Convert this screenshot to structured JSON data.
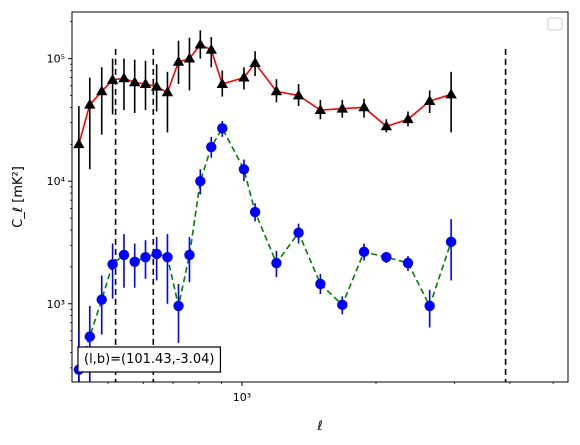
{
  "chart_data": {
    "type": "scatter",
    "title": "",
    "xlabel": "ℓ",
    "ylabel": "C_ℓ  [mK²]",
    "xscale": "log",
    "yscale": "log",
    "xlim": [
      415,
      5400
    ],
    "ylim": [
      230,
      240000
    ],
    "x_ticks": [
      {
        "value": 1000,
        "label": "10³"
      }
    ],
    "y_ticks": [
      {
        "value": 1000,
        "label": "10³"
      },
      {
        "value": 10000,
        "label": "10⁴"
      },
      {
        "value": 100000,
        "label": "10⁵"
      }
    ],
    "grid": false,
    "legend": {
      "placement": "top-right",
      "entries": []
    },
    "vlines": [
      520,
      632,
      3910
    ],
    "annotation": {
      "text": "(l,b)=(101.43,-3.04)",
      "placement": "bottom-left"
    },
    "series": [
      {
        "style": {
          "color": "#ff0000",
          "linestyle": "solid",
          "marker": "triangle",
          "marker_color": "#000000",
          "errorbar_color": "#000000"
        },
        "points": [
          {
            "x": 430,
            "y": 20000,
            "lo": 230,
            "hi": 41000
          },
          {
            "x": 455,
            "y": 42000,
            "lo": 12500,
            "hi": 70000
          },
          {
            "x": 484,
            "y": 54000,
            "lo": 24000,
            "hi": 85000
          },
          {
            "x": 512,
            "y": 67000,
            "lo": 35000,
            "hi": 100000
          },
          {
            "x": 543,
            "y": 69000,
            "lo": 38000,
            "hi": 100000
          },
          {
            "x": 574,
            "y": 64000,
            "lo": 36000,
            "hi": 98000
          },
          {
            "x": 607,
            "y": 62000,
            "lo": 38000,
            "hi": 96000
          },
          {
            "x": 643,
            "y": 59000,
            "lo": 37000,
            "hi": 90000
          },
          {
            "x": 680,
            "y": 53000,
            "lo": 25000,
            "hi": 78000
          },
          {
            "x": 720,
            "y": 94000,
            "lo": 62000,
            "hi": 140000
          },
          {
            "x": 762,
            "y": 100000,
            "lo": 55000,
            "hi": 148000
          },
          {
            "x": 806,
            "y": 130000,
            "lo": 100000,
            "hi": 170000
          },
          {
            "x": 853,
            "y": 118000,
            "lo": 85000,
            "hi": 150000
          },
          {
            "x": 903,
            "y": 62000,
            "lo": 49000,
            "hi": 80000
          },
          {
            "x": 1010,
            "y": 70000,
            "lo": 56000,
            "hi": 85000
          },
          {
            "x": 1070,
            "y": 92000,
            "lo": 72000,
            "hi": 115000
          },
          {
            "x": 1195,
            "y": 54000,
            "lo": 44000,
            "hi": 68000
          },
          {
            "x": 1340,
            "y": 50000,
            "lo": 41000,
            "hi": 62000
          },
          {
            "x": 1500,
            "y": 38000,
            "lo": 32000,
            "hi": 46000
          },
          {
            "x": 1680,
            "y": 39000,
            "lo": 33000,
            "hi": 46000
          },
          {
            "x": 1880,
            "y": 40000,
            "lo": 33000,
            "hi": 47000
          },
          {
            "x": 2110,
            "y": 28000,
            "lo": 25000,
            "hi": 32000
          },
          {
            "x": 2360,
            "y": 32000,
            "lo": 28000,
            "hi": 37000
          },
          {
            "x": 2640,
            "y": 45000,
            "lo": 36000,
            "hi": 55000
          },
          {
            "x": 2950,
            "y": 51000,
            "lo": 25000,
            "hi": 78000
          }
        ]
      },
      {
        "style": {
          "color": "#008000",
          "linestyle": "dashed",
          "marker": "circle",
          "marker_color": "#0000ff",
          "errorbar_color": "#0000ff"
        },
        "points": [
          {
            "x": 430,
            "y": 290,
            "lo": 230,
            "hi": 600
          },
          {
            "x": 455,
            "y": 540,
            "lo": 230,
            "hi": 960
          },
          {
            "x": 484,
            "y": 1080,
            "lo": 560,
            "hi": 1700
          },
          {
            "x": 512,
            "y": 2100,
            "lo": 1100,
            "hi": 3100
          },
          {
            "x": 543,
            "y": 2500,
            "lo": 1350,
            "hi": 3700
          },
          {
            "x": 574,
            "y": 2200,
            "lo": 1350,
            "hi": 3100
          },
          {
            "x": 607,
            "y": 2400,
            "lo": 1600,
            "hi": 3300
          },
          {
            "x": 643,
            "y": 2550,
            "lo": 1550,
            "hi": 3500
          },
          {
            "x": 680,
            "y": 2400,
            "lo": 1000,
            "hi": 3700
          },
          {
            "x": 720,
            "y": 960,
            "lo": 480,
            "hi": 1450
          },
          {
            "x": 762,
            "y": 2500,
            "lo": 1500,
            "hi": 3500
          },
          {
            "x": 806,
            "y": 10000,
            "lo": 7800,
            "hi": 12500
          },
          {
            "x": 853,
            "y": 19000,
            "lo": 15500,
            "hi": 23000
          },
          {
            "x": 903,
            "y": 27000,
            "lo": 23000,
            "hi": 31000
          },
          {
            "x": 1010,
            "y": 12500,
            "lo": 10000,
            "hi": 15000
          },
          {
            "x": 1070,
            "y": 5600,
            "lo": 4700,
            "hi": 6600
          },
          {
            "x": 1195,
            "y": 2150,
            "lo": 1650,
            "hi": 2700
          },
          {
            "x": 1340,
            "y": 3800,
            "lo": 3100,
            "hi": 4500
          },
          {
            "x": 1500,
            "y": 1450,
            "lo": 1200,
            "hi": 1750
          },
          {
            "x": 1680,
            "y": 980,
            "lo": 820,
            "hi": 1150
          },
          {
            "x": 1880,
            "y": 2650,
            "lo": 2250,
            "hi": 3100
          },
          {
            "x": 2110,
            "y": 2400,
            "lo": 2150,
            "hi": 2650
          },
          {
            "x": 2360,
            "y": 2150,
            "lo": 1850,
            "hi": 2450
          },
          {
            "x": 2640,
            "y": 960,
            "lo": 640,
            "hi": 1300
          },
          {
            "x": 2950,
            "y": 3200,
            "lo": 1550,
            "hi": 4900
          }
        ]
      }
    ]
  }
}
